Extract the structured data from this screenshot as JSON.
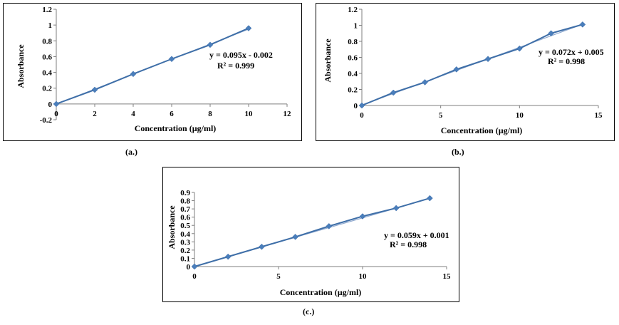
{
  "panels": [
    {
      "caption": "(a.)",
      "chart_data": {
        "type": "scatter",
        "xlabel": "Concentration (µg/ml)",
        "ylabel": "Absorbance",
        "xlim": [
          0,
          12
        ],
        "ylim": [
          -0.2,
          1.2
        ],
        "xticks": [
          "0",
          "2",
          "4",
          "6",
          "8",
          "10",
          "12"
        ],
        "yticks": [
          "-0.2",
          "0",
          "0.2",
          "0.4",
          "0.6",
          "0.8",
          "1",
          "1.2"
        ],
        "x": [
          0,
          2,
          4,
          6,
          8,
          10
        ],
        "y": [
          0,
          0.18,
          0.38,
          0.57,
          0.75,
          0.96
        ],
        "equation": "y = 0.095x - 0.002",
        "r2": "R² = 0.999",
        "trendline": {
          "slope": 0.095,
          "intercept": -0.002
        },
        "grid": false,
        "colors": {
          "series": "#4A7EBB",
          "trend": "#3F6FA8"
        }
      }
    },
    {
      "caption": "(b.)",
      "chart_data": {
        "type": "scatter",
        "xlabel": "Concentration (µg/ml)",
        "ylabel": "Absorbance",
        "xlim": [
          0,
          15
        ],
        "ylim": [
          0,
          1.2
        ],
        "xticks": [
          "0",
          "5",
          "10",
          "15"
        ],
        "yticks": [
          "0",
          "0.2",
          "0.4",
          "0.6",
          "0.8",
          "1",
          "1.2"
        ],
        "x": [
          0,
          2,
          4,
          6,
          8,
          10,
          12,
          14
        ],
        "y": [
          0,
          0.16,
          0.29,
          0.45,
          0.58,
          0.71,
          0.9,
          1.01
        ],
        "equation": "y = 0.072x + 0.005",
        "r2": "R² = 0.998",
        "trendline": {
          "slope": 0.072,
          "intercept": 0.005
        },
        "grid": false,
        "colors": {
          "series": "#4A7EBB",
          "trend": "#3F6FA8"
        }
      }
    },
    {
      "caption": "(c.)",
      "chart_data": {
        "type": "scatter",
        "xlabel": "Concentration (µg/ml)",
        "ylabel": "Absorbance",
        "xlim": [
          0,
          15
        ],
        "ylim": [
          0,
          0.9
        ],
        "xticks": [
          "0",
          "5",
          "10",
          "15"
        ],
        "yticks": [
          "0",
          "0.1",
          "0.2",
          "0.3",
          "0.4",
          "0.5",
          "0.6",
          "0.7",
          "0.8",
          "0.9"
        ],
        "x": [
          0,
          2,
          4,
          6,
          8,
          10,
          12,
          14
        ],
        "y": [
          0,
          0.12,
          0.24,
          0.36,
          0.49,
          0.61,
          0.71,
          0.83
        ],
        "equation": "y = 0.059x + 0.001",
        "r2": "R² = 0.998",
        "trendline": {
          "slope": 0.059,
          "intercept": 0.001
        },
        "grid": false,
        "colors": {
          "series": "#4A7EBB",
          "trend": "#3F6FA8"
        }
      }
    }
  ]
}
